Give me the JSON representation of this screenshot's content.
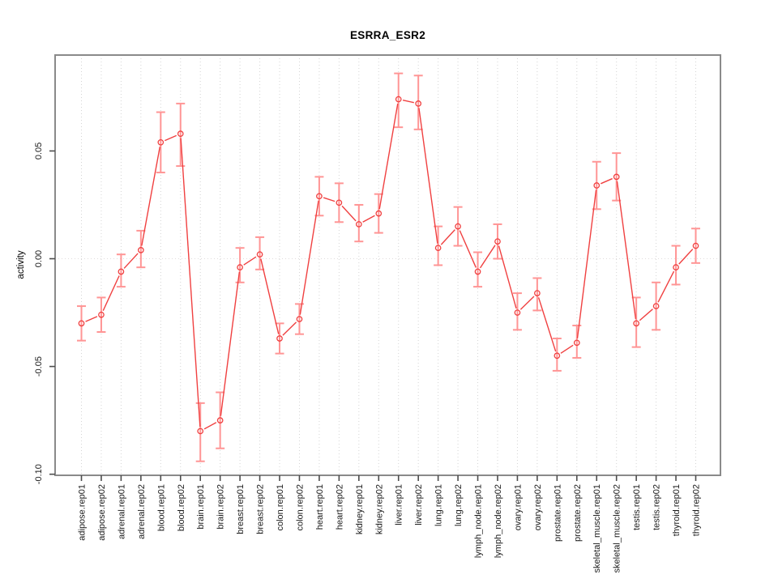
{
  "chart_data": {
    "type": "line",
    "title": "ESRRA_ESR2",
    "ylabel": "activity",
    "xlabel": "",
    "legend": "none",
    "grid": "vertical dotted gridline at each category; dotted horizontal line at y=0",
    "ylim": [
      -0.1005,
      0.0945
    ],
    "yticks": [
      0.05,
      0.0,
      -0.05,
      -0.1
    ],
    "ytick_labels": [
      "0.05",
      "0.00",
      "-0.05",
      "-0.10"
    ],
    "point_style": "open-circle",
    "error_bars": true,
    "colors": {
      "series": "#f04040",
      "error_bar": "#ff9595",
      "grid": "#d4d4d4",
      "zero_line": "#e0dbdb",
      "box": "#8a8a8a",
      "tick": "#4d4d4d",
      "text": "#1a1a1a"
    },
    "categories": [
      "adipose.rep01",
      "adipose.rep02",
      "adrenal.rep01",
      "adrenal.rep02",
      "blood.rep01",
      "blood.rep02",
      "brain.rep01",
      "brain.rep02",
      "breast.rep01",
      "breast.rep02",
      "colon.rep01",
      "colon.rep02",
      "heart.rep01",
      "heart.rep02",
      "kidney.rep01",
      "kidney.rep02",
      "liver.rep01",
      "liver.rep02",
      "lung.rep01",
      "lung.rep02",
      "lymph_node.rep01",
      "lymph_node.rep02",
      "ovary.rep01",
      "ovary.rep02",
      "prostate.rep01",
      "prostate.rep02",
      "skeletal_muscle.rep01",
      "skeletal_muscle.rep02",
      "testis.rep01",
      "testis.rep02",
      "thyroid.rep01",
      "thyroid.rep02"
    ],
    "series": [
      {
        "name": "activity",
        "values": [
          -0.03,
          -0.026,
          -0.006,
          0.004,
          0.054,
          0.058,
          -0.08,
          -0.075,
          -0.004,
          0.002,
          -0.037,
          -0.028,
          0.029,
          0.026,
          0.016,
          0.021,
          0.074,
          0.072,
          0.005,
          0.015,
          -0.006,
          0.008,
          -0.025,
          -0.016,
          -0.045,
          -0.039,
          0.034,
          0.038,
          -0.03,
          -0.022,
          -0.004,
          0.006
        ],
        "err_low": [
          -0.038,
          -0.034,
          -0.013,
          -0.004,
          0.04,
          0.043,
          -0.094,
          -0.088,
          -0.011,
          -0.005,
          -0.044,
          -0.035,
          0.02,
          0.017,
          0.008,
          0.012,
          0.061,
          0.06,
          -0.003,
          0.006,
          -0.013,
          0.0,
          -0.033,
          -0.024,
          -0.052,
          -0.046,
          0.023,
          0.027,
          -0.041,
          -0.033,
          -0.012,
          -0.002
        ],
        "err_high": [
          -0.022,
          -0.018,
          0.002,
          0.013,
          0.068,
          0.072,
          -0.067,
          -0.062,
          0.005,
          0.01,
          -0.03,
          -0.021,
          0.038,
          0.035,
          0.025,
          0.03,
          0.086,
          0.085,
          0.015,
          0.024,
          0.003,
          0.016,
          -0.016,
          -0.009,
          -0.037,
          -0.031,
          0.045,
          0.049,
          -0.018,
          -0.011,
          0.006,
          0.014
        ]
      }
    ]
  }
}
